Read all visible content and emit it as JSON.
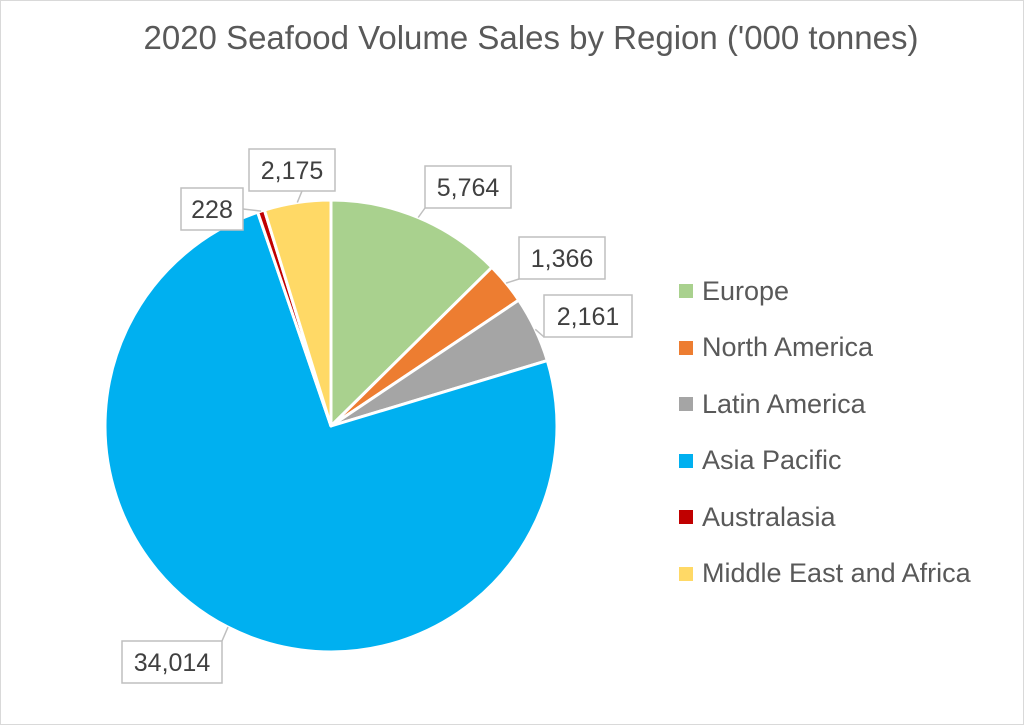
{
  "chart_data": {
    "type": "pie",
    "title": "2020 Seafood Volume Sales by Region ('000 tonnes)",
    "legend_position": "right",
    "slices": [
      {
        "name": "Europe",
        "value": 5764,
        "label": "5,764",
        "color": "#a9d18e"
      },
      {
        "name": "North America",
        "value": 1366,
        "label": "1,366",
        "color": "#ed7d31"
      },
      {
        "name": "Latin America",
        "value": 2161,
        "label": "2,161",
        "color": "#a5a5a5"
      },
      {
        "name": "Asia Pacific",
        "value": 34014,
        "label": "34,014",
        "color": "#00b0f0"
      },
      {
        "name": "Australasia",
        "value": 228,
        "label": "228",
        "color": "#c00000"
      },
      {
        "name": "Middle East and Africa",
        "value": 2175,
        "label": "2,175",
        "color": "#ffd966"
      }
    ]
  }
}
